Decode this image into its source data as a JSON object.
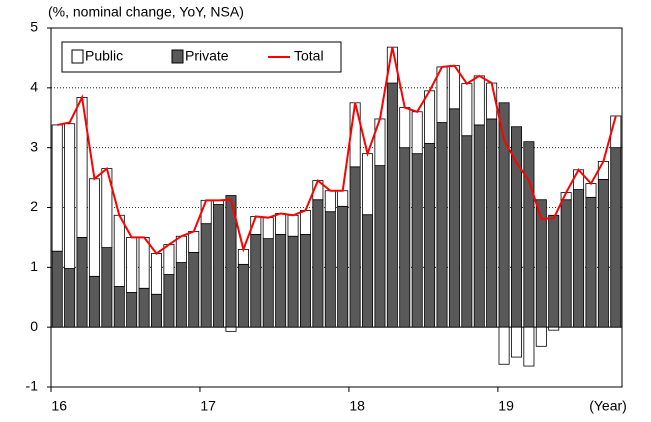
{
  "chart_data": {
    "type": "bar",
    "title": "(%, nominal change, YoY, NSA)",
    "x_label": "(Year)",
    "categories": [
      "16",
      null,
      null,
      null,
      null,
      null,
      null,
      null,
      null,
      null,
      null,
      null,
      "17",
      null,
      null,
      null,
      null,
      null,
      null,
      null,
      null,
      null,
      null,
      null,
      "18",
      null,
      null,
      null,
      null,
      null,
      null,
      null,
      null,
      null,
      null,
      null,
      "19",
      null,
      null,
      null,
      null,
      null,
      null,
      null,
      null,
      null
    ],
    "series": [
      {
        "name": "Public",
        "color": "#ffffff",
        "values": [
          2.11,
          2.42,
          2.34,
          1.63,
          1.32,
          1.19,
          0.92,
          0.85,
          0.68,
          0.5,
          0.44,
          0.35,
          0.39,
          0.07,
          -0.07,
          0.25,
          0.3,
          0.35,
          0.35,
          0.35,
          0.4,
          0.32,
          0.35,
          0.26,
          1.07,
          1.02,
          0.78,
          0.6,
          0.67,
          0.7,
          0.88,
          0.93,
          0.72,
          0.87,
          0.82,
          0.6,
          -0.62,
          -0.5,
          -0.65,
          -0.32,
          -0.05,
          0.12,
          0.33,
          0.23,
          0.3,
          0.53
        ]
      },
      {
        "name": "Private",
        "color": "#595959",
        "values": [
          1.27,
          0.98,
          1.5,
          0.85,
          1.33,
          0.68,
          0.58,
          0.65,
          0.55,
          0.88,
          1.08,
          1.25,
          1.73,
          2.05,
          2.2,
          1.05,
          1.55,
          1.48,
          1.55,
          1.52,
          1.55,
          2.13,
          1.93,
          2.02,
          2.68,
          1.88,
          2.7,
          4.08,
          3.0,
          2.9,
          3.07,
          3.42,
          3.65,
          3.2,
          3.38,
          3.48,
          3.75,
          3.35,
          3.1,
          2.13,
          1.87,
          2.13,
          2.3,
          2.17,
          2.47,
          3.0
        ]
      },
      {
        "name": "Total",
        "type": "line",
        "color": "#ff0000",
        "values": [
          3.38,
          3.42,
          3.84,
          2.48,
          2.65,
          1.87,
          1.5,
          1.5,
          1.23,
          1.38,
          1.52,
          1.6,
          2.12,
          2.12,
          2.13,
          1.3,
          1.85,
          1.83,
          1.9,
          1.87,
          1.95,
          2.45,
          2.28,
          2.28,
          3.75,
          2.9,
          3.48,
          4.68,
          3.67,
          3.6,
          3.95,
          4.35,
          4.37,
          4.07,
          4.2,
          4.08,
          3.13,
          2.75,
          2.45,
          1.81,
          1.82,
          2.25,
          2.63,
          2.4,
          2.77,
          3.53
        ]
      }
    ],
    "ylim": [
      -1,
      5
    ],
    "yticks": [
      -1,
      0,
      1,
      2,
      3,
      4,
      5
    ],
    "grid": true,
    "legend": "top-left"
  }
}
